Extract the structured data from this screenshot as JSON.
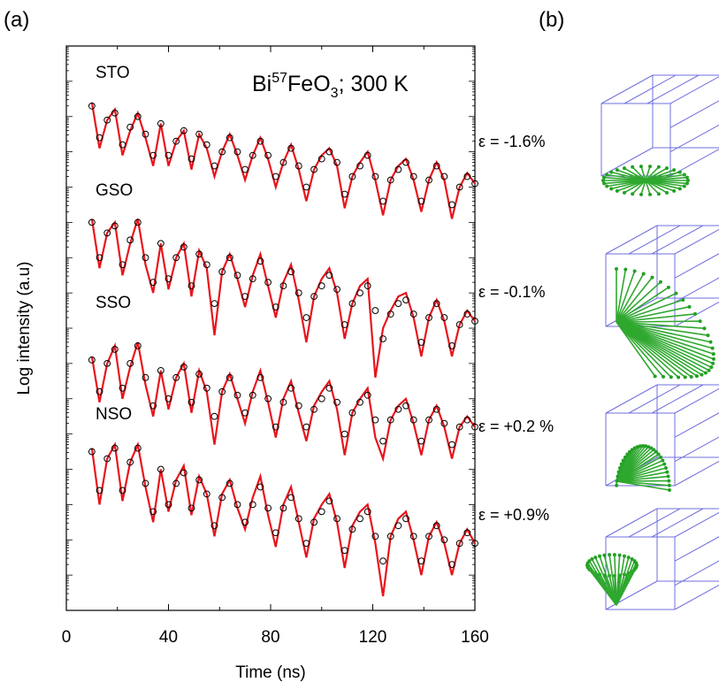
{
  "chart_data": {
    "type": "scatter",
    "panel_label": "(a)",
    "xlabel": "Time (ns)",
    "ylabel": "Log intensity (a.u)",
    "annotation": [
      "Bi",
      "57",
      "FeO",
      "3",
      "; 300 K"
    ],
    "xlim": [
      0,
      160
    ],
    "xticks": [
      0,
      40,
      80,
      120,
      160
    ],
    "ylim": [
      0,
      16
    ],
    "fit_color": "#e8141b",
    "x": [
      10,
      13,
      16,
      19,
      22,
      25,
      28,
      31,
      34,
      37,
      40,
      43,
      46,
      49,
      52,
      55,
      58,
      61,
      64,
      67,
      70,
      73,
      76,
      79,
      82,
      85,
      88,
      91,
      94,
      97,
      100,
      103,
      106,
      109,
      112,
      115,
      118,
      121,
      124,
      127,
      130,
      133,
      136,
      139,
      142,
      145,
      148,
      151,
      154,
      157,
      160
    ],
    "series": [
      {
        "name": "STO",
        "color": "#000000",
        "values": [
          14.3,
          13.4,
          13.9,
          14.1,
          13.2,
          13.7,
          14.0,
          13.5,
          12.9,
          13.8,
          12.9,
          13.3,
          13.6,
          12.8,
          13.5,
          13.2,
          12.6,
          13.0,
          13.4,
          13.0,
          12.5,
          12.9,
          13.3,
          12.9,
          12.3,
          12.7,
          13.1,
          12.6,
          12.0,
          12.5,
          12.8,
          13.0,
          12.7,
          11.8,
          12.3,
          12.6,
          12.9,
          12.3,
          11.6,
          12.2,
          12.5,
          12.7,
          12.3,
          11.6,
          12.2,
          12.6,
          12.3,
          11.5,
          12.0,
          12.3,
          12.1
        ],
        "fit": [
          14.4,
          13.1,
          13.9,
          14.2,
          12.9,
          13.6,
          14.1,
          13.4,
          12.6,
          13.8,
          12.6,
          13.3,
          13.6,
          12.5,
          13.5,
          13.1,
          12.3,
          13.0,
          13.5,
          12.9,
          12.2,
          12.9,
          13.4,
          12.8,
          12.0,
          12.7,
          13.2,
          12.5,
          11.6,
          12.5,
          12.9,
          13.1,
          12.6,
          11.4,
          12.3,
          12.7,
          13.0,
          12.2,
          11.2,
          12.2,
          12.6,
          12.8,
          12.2,
          11.3,
          12.2,
          12.7,
          12.2,
          11.1,
          12.0,
          12.4,
          12.1
        ]
      },
      {
        "name": "GSO",
        "color": "#000000",
        "values": [
          11.0,
          10.0,
          10.7,
          10.9,
          9.8,
          10.5,
          11.0,
          10.0,
          9.3,
          10.4,
          9.4,
          10.0,
          10.3,
          9.2,
          10.1,
          9.8,
          8.7,
          9.6,
          10.0,
          9.5,
          8.9,
          9.4,
          9.9,
          9.3,
          8.6,
          9.2,
          9.6,
          9.0,
          8.3,
          8.9,
          9.2,
          9.5,
          9.1,
          8.1,
          8.7,
          9.0,
          9.2,
          8.5,
          7.7,
          8.4,
          8.7,
          8.8,
          8.4,
          7.6,
          8.3,
          8.7,
          8.3,
          7.5,
          8.1,
          8.4,
          8.2
        ],
        "fit": [
          11.1,
          9.7,
          10.7,
          11.0,
          9.5,
          10.4,
          11.1,
          9.8,
          9.0,
          10.4,
          9.1,
          10.0,
          10.4,
          8.9,
          10.2,
          9.7,
          7.8,
          9.6,
          10.1,
          9.4,
          8.6,
          9.5,
          10.1,
          9.2,
          8.3,
          9.3,
          9.8,
          8.8,
          7.6,
          8.9,
          9.4,
          9.7,
          9.0,
          7.7,
          8.7,
          9.2,
          9.4,
          6.6,
          8.0,
          8.5,
          8.9,
          9.0,
          8.3,
          7.2,
          8.3,
          8.8,
          8.2,
          7.2,
          8.1,
          8.5,
          8.2
        ]
      },
      {
        "name": "SSO",
        "color": "#000000",
        "values": [
          7.1,
          6.2,
          7.0,
          7.4,
          6.3,
          7.0,
          7.5,
          6.6,
          5.8,
          6.8,
          6.0,
          6.6,
          6.9,
          5.9,
          6.7,
          6.3,
          5.5,
          6.2,
          6.6,
          6.1,
          5.6,
          6.1,
          6.6,
          6.0,
          5.2,
          5.9,
          6.3,
          5.8,
          5.2,
          5.7,
          6.0,
          6.3,
          5.9,
          5.0,
          5.6,
          5.9,
          6.1,
          5.4,
          4.8,
          5.4,
          5.7,
          5.8,
          5.4,
          4.8,
          5.4,
          5.7,
          5.3,
          4.7,
          5.2,
          5.4,
          5.2
        ],
        "fit": [
          7.2,
          5.9,
          7.0,
          7.5,
          6.0,
          6.9,
          7.6,
          6.4,
          5.5,
          6.8,
          5.7,
          6.6,
          7.0,
          5.6,
          6.8,
          6.2,
          4.7,
          6.2,
          6.7,
          6.0,
          5.3,
          6.2,
          6.8,
          5.9,
          4.9,
          6.0,
          6.5,
          5.6,
          4.8,
          5.8,
          6.2,
          6.5,
          5.7,
          4.4,
          5.6,
          6.0,
          6.3,
          4.9,
          4.3,
          5.4,
          5.8,
          6.0,
          5.3,
          4.4,
          5.4,
          5.8,
          5.2,
          4.3,
          5.2,
          5.5,
          5.2
        ]
      },
      {
        "name": "NSO",
        "color": "#000000",
        "values": [
          4.5,
          3.4,
          4.3,
          4.6,
          3.4,
          4.2,
          4.6,
          3.6,
          2.8,
          4.0,
          3.0,
          3.6,
          3.9,
          2.9,
          3.7,
          3.3,
          2.4,
          3.2,
          3.6,
          3.0,
          2.5,
          3.0,
          3.5,
          2.9,
          2.2,
          2.9,
          3.2,
          2.6,
          1.9,
          2.5,
          2.8,
          3.1,
          2.6,
          1.7,
          2.3,
          2.6,
          2.8,
          2.1,
          1.4,
          2.1,
          2.4,
          2.6,
          2.1,
          1.4,
          2.1,
          2.4,
          2.0,
          1.3,
          1.9,
          2.2,
          1.9
        ],
        "fit": [
          4.6,
          3.0,
          4.3,
          4.7,
          3.1,
          4.2,
          4.7,
          3.5,
          2.5,
          4.0,
          2.8,
          3.7,
          4.1,
          2.7,
          3.8,
          3.3,
          2.1,
          3.3,
          3.7,
          2.9,
          2.3,
          3.2,
          3.8,
          2.7,
          1.8,
          3.0,
          3.5,
          2.5,
          1.5,
          2.6,
          3.0,
          3.3,
          2.5,
          1.2,
          2.4,
          2.8,
          3.0,
          1.9,
          0.4,
          2.1,
          2.6,
          2.8,
          2.0,
          1.0,
          2.1,
          2.5,
          1.9,
          1.0,
          1.9,
          2.3,
          1.9
        ]
      }
    ]
  },
  "panel_b": {
    "label": "(b)",
    "strains": [
      "ε = -1.6%",
      "ε = -0.1%",
      "ε = +0.2 %",
      "ε = +0.9%"
    ]
  }
}
